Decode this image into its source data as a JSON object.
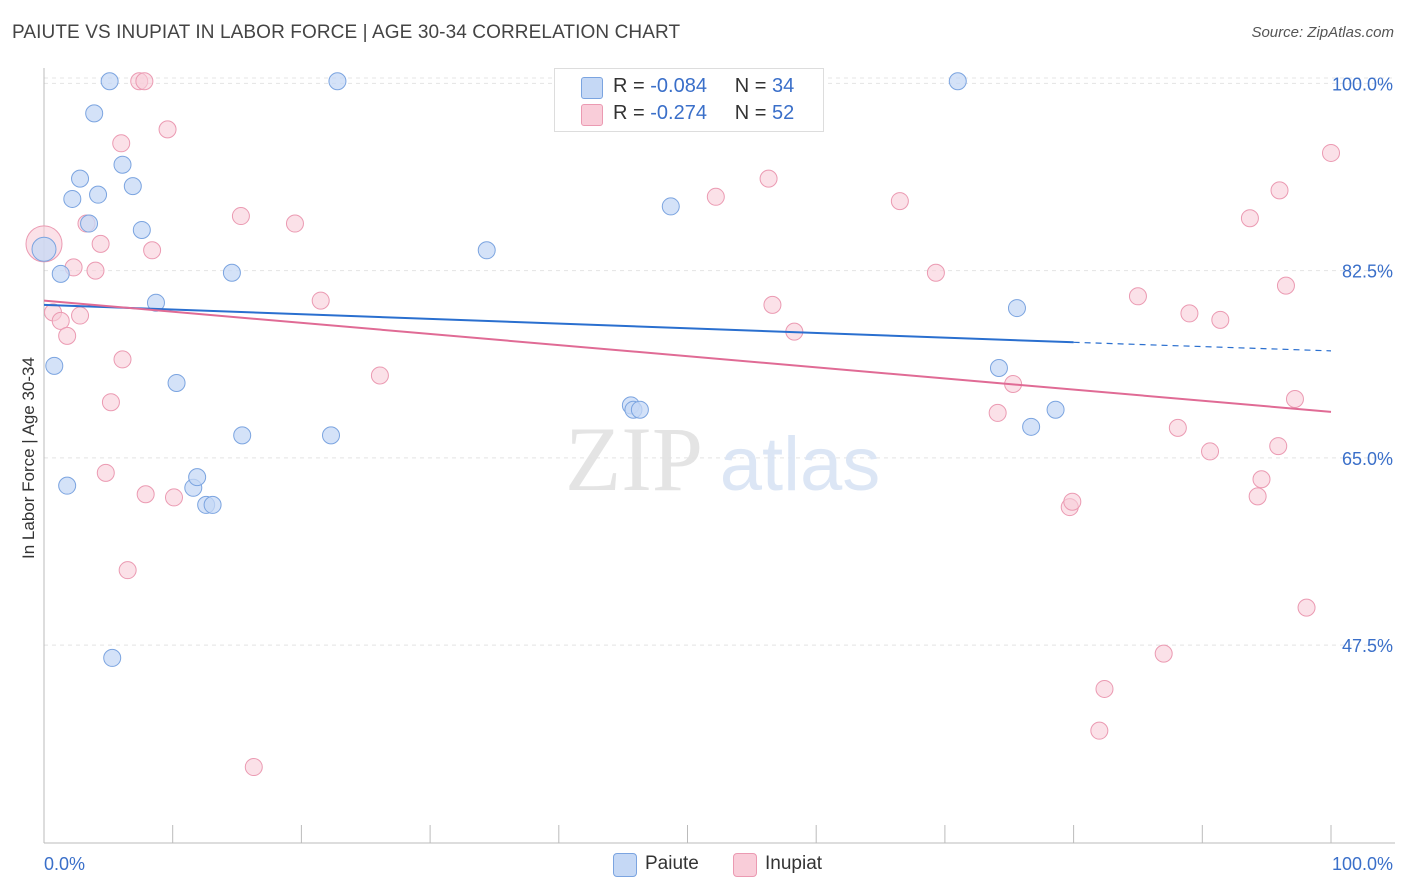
{
  "title": "PAIUTE VS INUPIAT IN LABOR FORCE | AGE 30-34 CORRELATION CHART",
  "source": "Source: ZipAtlas.com",
  "watermark": {
    "zip": "ZIP",
    "atlas": "atlas"
  },
  "legend": {
    "rows": [
      {
        "r_label": "R = ",
        "r_value": "-0.084",
        "n_label": "N = ",
        "n_value": "34"
      },
      {
        "r_label": "R = ",
        "r_value": " -0.274",
        "n_label": "N = ",
        "n_value": "52"
      }
    ]
  },
  "colors": {
    "paiute_fill": "#c5d8f5",
    "paiute_stroke": "#7ba4e0",
    "paiute_line": "#2a6fcf",
    "inupiat_fill": "#f9cdd9",
    "inupiat_stroke": "#eb9ab2",
    "inupiat_line": "#e06b95",
    "tick_label": "#3a6fc9"
  },
  "chart_data": {
    "type": "scatter",
    "title": "PAIUTE VS INUPIAT IN LABOR FORCE | AGE 30-34 CORRELATION CHART",
    "xlabel": "",
    "ylabel": "In Labor Force | Age 30-34",
    "xlim": [
      0,
      100
    ],
    "ylim": [
      29,
      102
    ],
    "x_tick_labels": [
      "0.0%",
      "100.0%"
    ],
    "y_ticks": [
      47.5,
      65.0,
      82.5,
      100.0
    ],
    "y_tick_labels": [
      "47.5%",
      "65.0%",
      "82.5%",
      "100.0%"
    ],
    "grid": true,
    "legend_position": "bottom-center",
    "series": [
      {
        "name": "Paiute",
        "r": -0.084,
        "n": 34,
        "trend": {
          "x0": 0,
          "y0": 79.3,
          "x1": 80,
          "y1": 75.8,
          "dashed_to_x": 100,
          "dashed_to_y": 75.0
        },
        "points": [
          [
            0,
            84.5
          ],
          [
            1.3,
            82.2
          ],
          [
            1.8,
            62.4
          ],
          [
            2.2,
            89.2
          ],
          [
            2.8,
            91.1
          ],
          [
            3.5,
            86.9
          ],
          [
            3.9,
            97.2
          ],
          [
            4.2,
            89.6
          ],
          [
            5.1,
            100.2
          ],
          [
            5.3,
            46.3
          ],
          [
            6.1,
            92.4
          ],
          [
            6.9,
            90.4
          ],
          [
            7.6,
            86.3
          ],
          [
            8.7,
            79.5
          ],
          [
            10.3,
            72.0
          ],
          [
            11.6,
            62.2
          ],
          [
            11.9,
            63.2
          ],
          [
            12.6,
            60.6
          ],
          [
            13.1,
            60.6
          ],
          [
            14.6,
            82.3
          ],
          [
            15.4,
            67.1
          ],
          [
            22.3,
            67.1
          ],
          [
            22.8,
            100.2
          ],
          [
            34.4,
            84.4
          ],
          [
            45.6,
            69.9
          ],
          [
            45.8,
            69.5
          ],
          [
            46.3,
            69.5
          ],
          [
            48.7,
            88.5
          ],
          [
            71.0,
            100.2
          ],
          [
            74.2,
            73.4
          ],
          [
            75.6,
            79.0
          ],
          [
            76.7,
            67.9
          ],
          [
            78.6,
            69.5
          ],
          [
            0.8,
            73.6
          ]
        ]
      },
      {
        "name": "Inupiat",
        "r": -0.274,
        "n": 52,
        "trend": {
          "x0": 0,
          "y0": 79.7,
          "x1": 100,
          "y1": 69.3
        },
        "points": [
          [
            0,
            85.0
          ],
          [
            0.7,
            78.6
          ],
          [
            1.3,
            77.8
          ],
          [
            1.8,
            76.4
          ],
          [
            2.3,
            82.8
          ],
          [
            2.8,
            78.3
          ],
          [
            3.3,
            86.9
          ],
          [
            4.0,
            82.5
          ],
          [
            4.4,
            85.0
          ],
          [
            4.8,
            63.6
          ],
          [
            5.2,
            70.2
          ],
          [
            6.0,
            94.4
          ],
          [
            6.1,
            74.2
          ],
          [
            6.5,
            54.5
          ],
          [
            7.4,
            100.2
          ],
          [
            7.8,
            100.2
          ],
          [
            7.9,
            61.6
          ],
          [
            8.4,
            84.4
          ],
          [
            9.6,
            95.7
          ],
          [
            10.1,
            61.3
          ],
          [
            15.3,
            87.6
          ],
          [
            16.3,
            36.1
          ],
          [
            19.5,
            86.9
          ],
          [
            21.5,
            79.7
          ],
          [
            26.1,
            72.7
          ],
          [
            52.2,
            89.4
          ],
          [
            56.3,
            91.1
          ],
          [
            56.6,
            79.3
          ],
          [
            58.3,
            76.8
          ],
          [
            66.5,
            89.0
          ],
          [
            69.3,
            82.3
          ],
          [
            74.1,
            69.2
          ],
          [
            75.3,
            71.9
          ],
          [
            79.7,
            60.4
          ],
          [
            79.9,
            60.9
          ],
          [
            82.0,
            39.5
          ],
          [
            82.4,
            43.4
          ],
          [
            85.0,
            80.1
          ],
          [
            87.0,
            46.7
          ],
          [
            88.1,
            67.8
          ],
          [
            89.0,
            78.5
          ],
          [
            90.6,
            65.6
          ],
          [
            91.4,
            77.9
          ],
          [
            93.7,
            87.4
          ],
          [
            94.3,
            61.4
          ],
          [
            94.6,
            63.0
          ],
          [
            95.9,
            66.1
          ],
          [
            96.0,
            90.0
          ],
          [
            96.5,
            81.1
          ],
          [
            97.2,
            70.5
          ],
          [
            98.1,
            51.0
          ],
          [
            100.0,
            93.5
          ]
        ]
      }
    ]
  }
}
